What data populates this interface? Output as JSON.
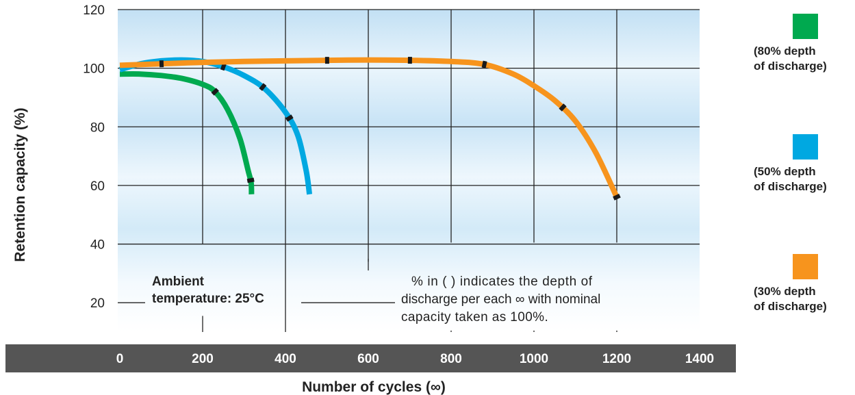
{
  "chart_data": {
    "type": "line",
    "xlabel": "Number of cycles (∞)",
    "ylabel": "Retention capacity (%)",
    "xlim": [
      -5,
      1400
    ],
    "ylim": [
      10,
      120
    ],
    "x_ticks": [
      "0",
      "200",
      "400",
      "600",
      "800",
      "1000",
      "1200",
      "1400"
    ],
    "y_ticks": [
      "120",
      "100",
      "80",
      "60",
      "40",
      "20"
    ],
    "grid": true,
    "legend_position": "right",
    "series": [
      {
        "name": "(80% depth of discharge)",
        "color": "#00a94f",
        "x": [
          0,
          50,
          100,
          150,
          200,
          230,
          260,
          290,
          310,
          317,
          318
        ],
        "y": [
          98,
          98,
          97.5,
          96.5,
          94.5,
          92,
          86,
          76,
          65,
          61,
          57
        ]
      },
      {
        "name": "(50% depth of discharge)",
        "color": "#00a8e1",
        "x": [
          0,
          50,
          100,
          150,
          200,
          250,
          300,
          350,
          400,
          430,
          450,
          458
        ],
        "y": [
          99.5,
          101.5,
          102.5,
          102.8,
          102.3,
          100.5,
          97.5,
          93,
          85,
          77,
          65,
          57
        ]
      },
      {
        "name": "(30% depth of discharge)",
        "color": "#f7941d",
        "x": [
          0,
          100,
          200,
          300,
          400,
          500,
          600,
          700,
          800,
          880,
          950,
          1000,
          1050,
          1100,
          1150,
          1200
        ],
        "y": [
          101,
          101.5,
          102,
          102.3,
          102.5,
          102.7,
          102.8,
          102.7,
          102.3,
          101.3,
          98,
          94,
          89,
          82,
          71,
          56
        ]
      }
    ],
    "annotations": {
      "ambient_line1": "Ambient",
      "ambient_line2": "temperature: 25°C",
      "note_line1": "% in (   ) indicates the depth of",
      "note_line2": "discharge per each ∞ with nominal",
      "note_line3": "capacity taken as 100%."
    },
    "legend": [
      {
        "color": "#00a94f",
        "line1": "(80% depth",
        "line2": "of discharge)"
      },
      {
        "color": "#00a8e1",
        "line1": "(50% depth",
        "line2": "of discharge)"
      },
      {
        "color": "#f7941d",
        "line1": "(30% depth",
        "line2": "of discharge)"
      }
    ],
    "colors": {
      "axis_bar": "#555555",
      "grid": "#222222",
      "plot_bg_top": "#c6e3f5",
      "plot_bg_mid": "#eaf5fc"
    }
  }
}
